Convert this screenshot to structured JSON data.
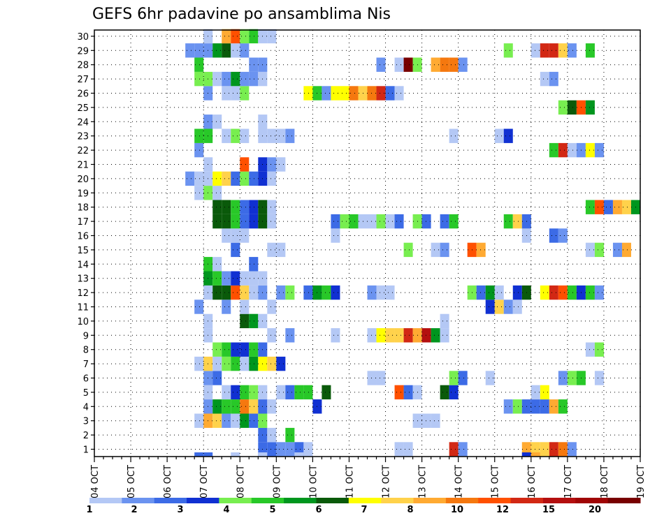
{
  "chart_data": {
    "type": "heatmap",
    "title": "GEFS 6hr padavine po ansamblima Nis",
    "x_tick_labels": [
      "04 OCT",
      "05 OCT",
      "06 OCT",
      "07 OCT",
      "08 OCT",
      "09 OCT",
      "10 OCT",
      "11 OCT",
      "12 OCT",
      "13 OCT",
      "14 OCT",
      "15 OCT",
      "16 OCT",
      "17 OCT",
      "18 OCT",
      "19 OCT"
    ],
    "y_tick_labels": [
      "1",
      "2",
      "3",
      "4",
      "5",
      "6",
      "7",
      "8",
      "9",
      "10",
      "11",
      "12",
      "13",
      "14",
      "15",
      "16",
      "17",
      "18",
      "19",
      "20",
      "21",
      "22",
      "23",
      "24",
      "25",
      "26",
      "27",
      "28",
      "29",
      "30"
    ],
    "ylim": [
      0,
      30
    ],
    "time_step_hours": 6,
    "grid": "dotted",
    "colorbar": {
      "placement": "bottom",
      "colors": [
        "#b4c8f5",
        "#6b93f0",
        "#3c6be6",
        "#1030d2",
        "#78ee50",
        "#28c828",
        "#00961e",
        "#0a5a0a",
        "#ffff00",
        "#ffd24b",
        "#ffaa32",
        "#f5780f",
        "#ff5000",
        "#d22814",
        "#b40f0f",
        "#a00505",
        "#780000"
      ],
      "tick_labels": [
        "1",
        "2",
        "3",
        "4",
        "5",
        "6",
        "7",
        "8",
        "10",
        "12",
        "15",
        "20"
      ],
      "tick_boundary_index": [
        0,
        2,
        4,
        6,
        8,
        10,
        12,
        14,
        16,
        18,
        20,
        22
      ]
    },
    "cells": [
      [
        1,
        19,
        3
      ],
      [
        1,
        20,
        3
      ],
      [
        1,
        21,
        2
      ],
      [
        1,
        22,
        2
      ],
      [
        1,
        23,
        3
      ],
      [
        1,
        24,
        1
      ],
      [
        1,
        34,
        1
      ],
      [
        1,
        35,
        1
      ],
      [
        1,
        40,
        14
      ],
      [
        1,
        41,
        2
      ],
      [
        1,
        48,
        11
      ],
      [
        1,
        49,
        10
      ],
      [
        1,
        50,
        10
      ],
      [
        1,
        51,
        14
      ],
      [
        1,
        52,
        12
      ],
      [
        1,
        53,
        2
      ],
      [
        2,
        19,
        3
      ],
      [
        2,
        20,
        1
      ],
      [
        2,
        22,
        6
      ],
      [
        3,
        12,
        1
      ],
      [
        3,
        13,
        11
      ],
      [
        3,
        14,
        10
      ],
      [
        3,
        15,
        2
      ],
      [
        3,
        16,
        1
      ],
      [
        3,
        17,
        7
      ],
      [
        3,
        18,
        3
      ],
      [
        3,
        19,
        5
      ],
      [
        3,
        36,
        1
      ],
      [
        3,
        37,
        1
      ],
      [
        3,
        38,
        1
      ],
      [
        4,
        13,
        2
      ],
      [
        4,
        14,
        7
      ],
      [
        4,
        15,
        6
      ],
      [
        4,
        16,
        6
      ],
      [
        4,
        17,
        12
      ],
      [
        4,
        18,
        10
      ],
      [
        4,
        19,
        3
      ],
      [
        4,
        20,
        1
      ],
      [
        4,
        25,
        4
      ],
      [
        4,
        46,
        2
      ],
      [
        4,
        47,
        5
      ],
      [
        4,
        48,
        3
      ],
      [
        4,
        49,
        3
      ],
      [
        4,
        50,
        3
      ],
      [
        4,
        51,
        11
      ],
      [
        4,
        52,
        6
      ],
      [
        5,
        13,
        1
      ],
      [
        5,
        15,
        1
      ],
      [
        5,
        16,
        4
      ],
      [
        5,
        17,
        6
      ],
      [
        5,
        18,
        5
      ],
      [
        5,
        19,
        1
      ],
      [
        5,
        21,
        1
      ],
      [
        5,
        22,
        3
      ],
      [
        5,
        23,
        6
      ],
      [
        5,
        24,
        6
      ],
      [
        5,
        26,
        8
      ],
      [
        5,
        34,
        13
      ],
      [
        5,
        35,
        3
      ],
      [
        5,
        36,
        1
      ],
      [
        5,
        39,
        8
      ],
      [
        5,
        40,
        4
      ],
      [
        5,
        49,
        1
      ],
      [
        5,
        50,
        9
      ],
      [
        6,
        13,
        2
      ],
      [
        6,
        14,
        3
      ],
      [
        6,
        31,
        1
      ],
      [
        6,
        32,
        1
      ],
      [
        6,
        40,
        5
      ],
      [
        6,
        41,
        3
      ],
      [
        6,
        44,
        1
      ],
      [
        6,
        52,
        2
      ],
      [
        6,
        53,
        5
      ],
      [
        6,
        54,
        6
      ],
      [
        6,
        56,
        1
      ],
      [
        7,
        12,
        1
      ],
      [
        7,
        13,
        10
      ],
      [
        7,
        14,
        1
      ],
      [
        7,
        15,
        5
      ],
      [
        7,
        16,
        6
      ],
      [
        7,
        17,
        1
      ],
      [
        7,
        18,
        7
      ],
      [
        7,
        19,
        9
      ],
      [
        7,
        20,
        10
      ],
      [
        7,
        21,
        4
      ],
      [
        8,
        14,
        5
      ],
      [
        8,
        15,
        6
      ],
      [
        8,
        16,
        4
      ],
      [
        8,
        17,
        4
      ],
      [
        8,
        18,
        6
      ],
      [
        8,
        19,
        3
      ],
      [
        8,
        55,
        1
      ],
      [
        8,
        56,
        5
      ],
      [
        9,
        13,
        1
      ],
      [
        9,
        20,
        1
      ],
      [
        9,
        22,
        2
      ],
      [
        9,
        27,
        1
      ],
      [
        9,
        31,
        1
      ],
      [
        9,
        32,
        9
      ],
      [
        9,
        33,
        10
      ],
      [
        9,
        34,
        10
      ],
      [
        9,
        35,
        14
      ],
      [
        9,
        36,
        11
      ],
      [
        9,
        37,
        15
      ],
      [
        9,
        38,
        7
      ],
      [
        9,
        39,
        1
      ],
      [
        10,
        13,
        1
      ],
      [
        10,
        17,
        8
      ],
      [
        10,
        18,
        7
      ],
      [
        10,
        19,
        1
      ],
      [
        10,
        39,
        1
      ],
      [
        11,
        12,
        2
      ],
      [
        11,
        15,
        2
      ],
      [
        11,
        17,
        1
      ],
      [
        11,
        20,
        1
      ],
      [
        11,
        44,
        4
      ],
      [
        11,
        45,
        10
      ],
      [
        11,
        46,
        2
      ],
      [
        11,
        47,
        1
      ],
      [
        12,
        13,
        1
      ],
      [
        12,
        14,
        8
      ],
      [
        12,
        15,
        8
      ],
      [
        12,
        16,
        13
      ],
      [
        12,
        17,
        10
      ],
      [
        12,
        18,
        1
      ],
      [
        12,
        19,
        2
      ],
      [
        12,
        21,
        2
      ],
      [
        12,
        22,
        5
      ],
      [
        12,
        24,
        3
      ],
      [
        12,
        25,
        7
      ],
      [
        12,
        26,
        6
      ],
      [
        12,
        27,
        4
      ],
      [
        12,
        31,
        2
      ],
      [
        12,
        32,
        1
      ],
      [
        12,
        33,
        1
      ],
      [
        12,
        42,
        5
      ],
      [
        12,
        43,
        3
      ],
      [
        12,
        44,
        7
      ],
      [
        12,
        45,
        1
      ],
      [
        12,
        47,
        4
      ],
      [
        12,
        48,
        8
      ],
      [
        12,
        50,
        9
      ],
      [
        12,
        51,
        14
      ],
      [
        12,
        52,
        13
      ],
      [
        12,
        53,
        6
      ],
      [
        12,
        54,
        4
      ],
      [
        12,
        55,
        6
      ],
      [
        12,
        56,
        2
      ],
      [
        13,
        13,
        7
      ],
      [
        13,
        14,
        6
      ],
      [
        13,
        15,
        2
      ],
      [
        13,
        16,
        4
      ],
      [
        13,
        17,
        1
      ],
      [
        13,
        18,
        1
      ],
      [
        13,
        19,
        1
      ],
      [
        14,
        13,
        6
      ],
      [
        14,
        14,
        1
      ],
      [
        14,
        18,
        3
      ],
      [
        15,
        16,
        3
      ],
      [
        15,
        20,
        1
      ],
      [
        15,
        21,
        1
      ],
      [
        15,
        35,
        5
      ],
      [
        15,
        38,
        1
      ],
      [
        15,
        39,
        2
      ],
      [
        15,
        42,
        13
      ],
      [
        15,
        43,
        11
      ],
      [
        15,
        55,
        1
      ],
      [
        15,
        56,
        5
      ],
      [
        15,
        58,
        2
      ],
      [
        15,
        59,
        11
      ],
      [
        16,
        15,
        1
      ],
      [
        16,
        16,
        1
      ],
      [
        16,
        17,
        1
      ],
      [
        16,
        27,
        1
      ],
      [
        16,
        48,
        1
      ],
      [
        16,
        51,
        3
      ],
      [
        16,
        52,
        2
      ],
      [
        17,
        14,
        8
      ],
      [
        17,
        15,
        8
      ],
      [
        17,
        16,
        6
      ],
      [
        17,
        17,
        3
      ],
      [
        17,
        18,
        4
      ],
      [
        17,
        19,
        8
      ],
      [
        17,
        20,
        1
      ],
      [
        17,
        27,
        3
      ],
      [
        17,
        28,
        5
      ],
      [
        17,
        29,
        6
      ],
      [
        17,
        30,
        1
      ],
      [
        17,
        31,
        1
      ],
      [
        17,
        32,
        5
      ],
      [
        17,
        33,
        1
      ],
      [
        17,
        34,
        3
      ],
      [
        17,
        36,
        5
      ],
      [
        17,
        37,
        3
      ],
      [
        17,
        39,
        3
      ],
      [
        17,
        40,
        6
      ],
      [
        17,
        46,
        6
      ],
      [
        17,
        47,
        10
      ],
      [
        17,
        48,
        3
      ],
      [
        18,
        14,
        8
      ],
      [
        18,
        15,
        8
      ],
      [
        18,
        16,
        6
      ],
      [
        18,
        17,
        3
      ],
      [
        18,
        18,
        4
      ],
      [
        18,
        19,
        8
      ],
      [
        18,
        20,
        1
      ],
      [
        18,
        55,
        6
      ],
      [
        18,
        56,
        13
      ],
      [
        18,
        57,
        3
      ],
      [
        18,
        58,
        11
      ],
      [
        18,
        59,
        10
      ],
      [
        18,
        60,
        7
      ],
      [
        19,
        12,
        1
      ],
      [
        19,
        13,
        5
      ],
      [
        19,
        14,
        1
      ],
      [
        20,
        11,
        2
      ],
      [
        20,
        12,
        1
      ],
      [
        20,
        13,
        1
      ],
      [
        20,
        14,
        9
      ],
      [
        20,
        15,
        10
      ],
      [
        20,
        16,
        3
      ],
      [
        20,
        17,
        5
      ],
      [
        20,
        18,
        3
      ],
      [
        20,
        19,
        4
      ],
      [
        20,
        20,
        1
      ],
      [
        21,
        13,
        1
      ],
      [
        21,
        17,
        13
      ],
      [
        21,
        19,
        4
      ],
      [
        21,
        20,
        2
      ],
      [
        21,
        21,
        1
      ],
      [
        22,
        12,
        2
      ],
      [
        22,
        51,
        6
      ],
      [
        22,
        52,
        14
      ],
      [
        22,
        53,
        1
      ],
      [
        22,
        54,
        2
      ],
      [
        22,
        55,
        9
      ],
      [
        22,
        56,
        2
      ],
      [
        23,
        12,
        6
      ],
      [
        23,
        13,
        6
      ],
      [
        23,
        15,
        1
      ],
      [
        23,
        16,
        5
      ],
      [
        23,
        17,
        1
      ],
      [
        23,
        19,
        1
      ],
      [
        23,
        20,
        1
      ],
      [
        23,
        21,
        1
      ],
      [
        23,
        22,
        2
      ],
      [
        23,
        40,
        1
      ],
      [
        23,
        45,
        1
      ],
      [
        23,
        46,
        4
      ],
      [
        24,
        13,
        2
      ],
      [
        24,
        14,
        1
      ],
      [
        24,
        19,
        1
      ],
      [
        25,
        52,
        5
      ],
      [
        25,
        53,
        8
      ],
      [
        25,
        54,
        13
      ],
      [
        25,
        55,
        7
      ],
      [
        26,
        13,
        2
      ],
      [
        26,
        15,
        1
      ],
      [
        26,
        16,
        1
      ],
      [
        26,
        17,
        5
      ],
      [
        26,
        24,
        9
      ],
      [
        26,
        25,
        6
      ],
      [
        26,
        26,
        2
      ],
      [
        26,
        27,
        9
      ],
      [
        26,
        28,
        9
      ],
      [
        26,
        29,
        12
      ],
      [
        26,
        30,
        10
      ],
      [
        26,
        31,
        12
      ],
      [
        26,
        32,
        14
      ],
      [
        26,
        33,
        3
      ],
      [
        26,
        34,
        1
      ],
      [
        27,
        12,
        5
      ],
      [
        27,
        13,
        5
      ],
      [
        27,
        14,
        1
      ],
      [
        27,
        15,
        2
      ],
      [
        27,
        16,
        7
      ],
      [
        27,
        17,
        2
      ],
      [
        27,
        18,
        2
      ],
      [
        27,
        19,
        1
      ],
      [
        27,
        50,
        1
      ],
      [
        27,
        51,
        2
      ],
      [
        28,
        12,
        6
      ],
      [
        28,
        18,
        2
      ],
      [
        28,
        19,
        2
      ],
      [
        28,
        32,
        2
      ],
      [
        28,
        34,
        1
      ],
      [
        28,
        35,
        17
      ],
      [
        28,
        36,
        5
      ],
      [
        28,
        38,
        11
      ],
      [
        28,
        39,
        12
      ],
      [
        28,
        40,
        12
      ],
      [
        28,
        41,
        2
      ],
      [
        29,
        11,
        2
      ],
      [
        29,
        12,
        2
      ],
      [
        29,
        13,
        2
      ],
      [
        29,
        14,
        7
      ],
      [
        29,
        15,
        8
      ],
      [
        29,
        16,
        1
      ],
      [
        29,
        17,
        2
      ],
      [
        29,
        46,
        5
      ],
      [
        29,
        49,
        1
      ],
      [
        29,
        50,
        14
      ],
      [
        29,
        51,
        14
      ],
      [
        29,
        52,
        10
      ],
      [
        29,
        53,
        2
      ],
      [
        29,
        55,
        6
      ],
      [
        30,
        13,
        1
      ],
      [
        30,
        15,
        11
      ],
      [
        30,
        16,
        13
      ],
      [
        30,
        17,
        5
      ],
      [
        30,
        18,
        6
      ],
      [
        30,
        19,
        1
      ],
      [
        30,
        20,
        1
      ],
      [
        0,
        12,
        3
      ],
      [
        0,
        13,
        3
      ],
      [
        0,
        16,
        1
      ],
      [
        0,
        19,
        1
      ],
      [
        0,
        23,
        1
      ],
      [
        0,
        48,
        4
      ],
      [
        0,
        49,
        11
      ]
    ]
  }
}
